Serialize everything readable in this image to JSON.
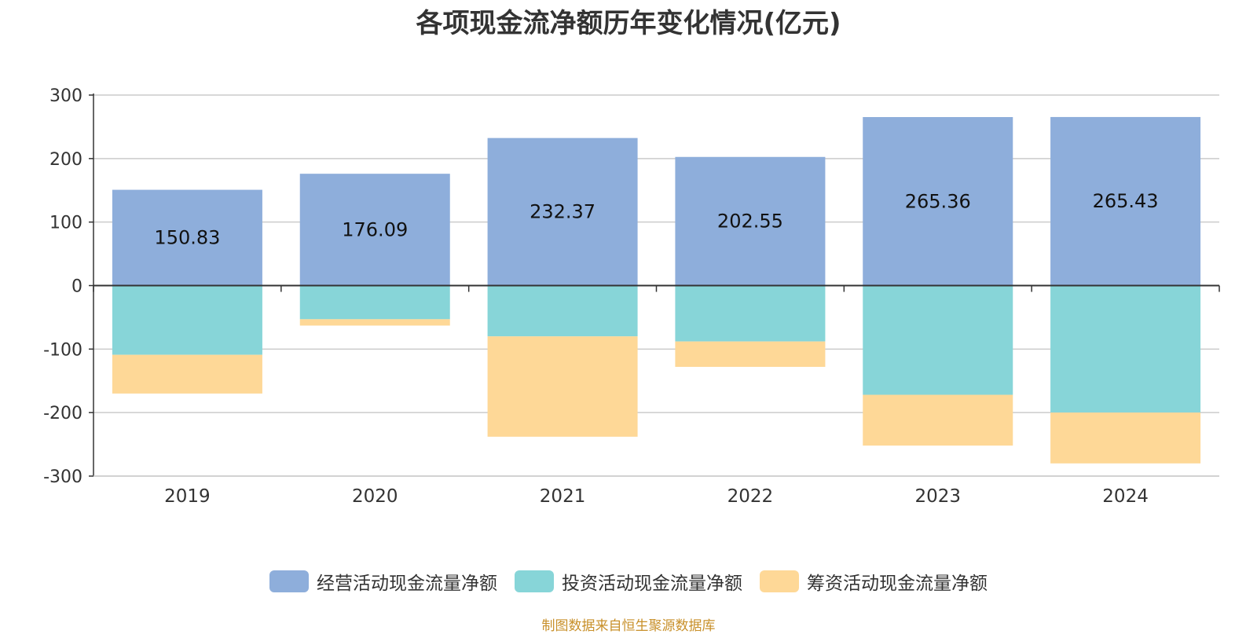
{
  "chart_data": {
    "type": "bar",
    "stacked": true,
    "title": "各项现金流净额历年变化情况(亿元)",
    "categories": [
      "2019",
      "2020",
      "2021",
      "2022",
      "2023",
      "2024"
    ],
    "ylim": [
      -300,
      300
    ],
    "yticks": [
      300,
      200,
      100,
      0,
      -100,
      -200,
      -300
    ],
    "grid": true,
    "legend_position": "bottom",
    "series": [
      {
        "name": "经营活动现金流量净额",
        "color": "#8eaedb",
        "values": [
          150.83,
          176.09,
          232.37,
          202.55,
          265.36,
          265.43
        ],
        "labels": [
          "150.83",
          "176.09",
          "232.37",
          "202.55",
          "265.36",
          "265.43"
        ]
      },
      {
        "name": "投资活动现金流量净额",
        "color": "#87d5d8",
        "values": [
          -109,
          -53,
          -80,
          -88,
          -172,
          -200
        ]
      },
      {
        "name": "筹资活动现金流量净额",
        "color": "#fed897",
        "values": [
          -61,
          -10,
          -158,
          -40,
          -80,
          -80
        ]
      }
    ],
    "source": "制图数据来自恒生聚源数据库"
  }
}
